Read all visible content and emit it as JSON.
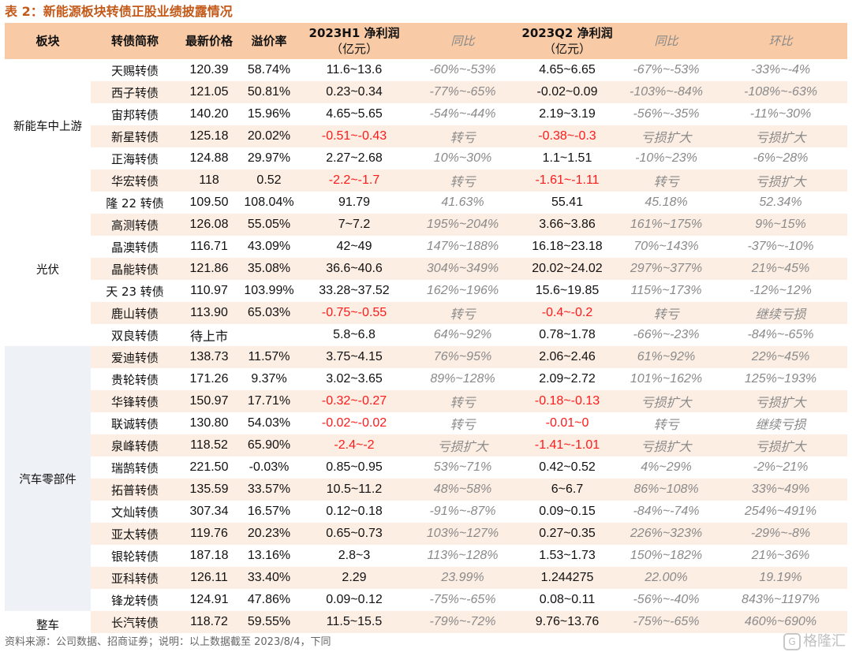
{
  "title": "表 2：新能源板块转债正股业绩披露情况",
  "headers": {
    "sector": "板块",
    "bond": "转债简称",
    "price": "最新价格",
    "premium": "溢价率",
    "h1": "2023H1 净利润",
    "h1_unit": "（亿元）",
    "h1_yoy": "同比",
    "q2": "2023Q2 净利润",
    "q2_unit": "（亿元）",
    "q2_yoy": "同比",
    "q2_qoq": "环比"
  },
  "sections": {
    "s1": "新能车中上游",
    "s2": "光伏",
    "s3": "汽车零部件",
    "s4": "整车"
  },
  "rows": [
    [
      "天赐转债",
      "120.39",
      "58.74%",
      "11.6~13.6",
      "-60%~-53%",
      "4.65~6.65",
      "-67%~-53%",
      "-33%~-4%"
    ],
    [
      "西子转债",
      "121.05",
      "50.81%",
      "0.23~0.34",
      "-77%~-65%",
      "-0.02~0.09",
      "-103%~-84%",
      "-108%~-63%"
    ],
    [
      "宙邦转债",
      "140.20",
      "15.96%",
      "4.65~5.65",
      "-54%~-44%",
      "2.19~3.19",
      "-56%~-35%",
      "-11%~30%"
    ],
    [
      "新星转债",
      "125.18",
      "20.02%",
      "-0.51~-0.43",
      "转亏",
      "-0.38~-0.3",
      "亏损扩大",
      "亏损扩大"
    ],
    [
      "正海转债",
      "124.88",
      "29.97%",
      "2.27~2.68",
      "10%~30%",
      "1.1~1.51",
      "-10%~23%",
      "-6%~28%"
    ],
    [
      "华宏转债",
      "118",
      "0.52",
      "-2.2~-1.7",
      "转亏",
      "-1.61~-1.11",
      "转亏",
      "亏损扩大"
    ],
    [
      "隆 22 转债",
      "109.50",
      "108.04%",
      "91.79",
      "41.63%",
      "55.41",
      "45.18%",
      "52.34%"
    ],
    [
      "高测转债",
      "126.08",
      "55.05%",
      "7~7.2",
      "195%~204%",
      "3.66~3.86",
      "161%~175%",
      "9%~15%"
    ],
    [
      "晶澳转债",
      "116.71",
      "43.09%",
      "42~49",
      "147%~188%",
      "16.18~23.18",
      "70%~143%",
      "-37%~-10%"
    ],
    [
      "晶能转债",
      "121.86",
      "35.08%",
      "36.6~40.6",
      "304%~349%",
      "20.02~24.02",
      "297%~377%",
      "21%~45%"
    ],
    [
      "天 23 转债",
      "110.97",
      "103.99%",
      "33.28~37.52",
      "162%~196%",
      "15.6~19.85",
      "115%~173%",
      "-12%~12%"
    ],
    [
      "鹿山转债",
      "113.90",
      "65.03%",
      "-0.75~-0.55",
      "转亏",
      "-0.4~-0.2",
      "转亏",
      "继续亏损"
    ],
    [
      "双良转债",
      "待上市",
      "",
      "5.8~6.8",
      "64%~92%",
      "0.78~1.78",
      "-66%~-23%",
      "-84%~-65%"
    ],
    [
      "爱迪转债",
      "138.73",
      "11.57%",
      "3.75~4.15",
      "76%~95%",
      "2.06~2.46",
      "61%~92%",
      "22%~45%"
    ],
    [
      "贵轮转债",
      "171.26",
      "9.37%",
      "3.02~3.65",
      "89%~128%",
      "2.09~2.72",
      "101%~162%",
      "125%~193%"
    ],
    [
      "华锋转债",
      "150.97",
      "17.71%",
      "-0.32~-0.27",
      "转亏",
      "-0.18~-0.13",
      "亏损扩大",
      "亏损扩大"
    ],
    [
      "联诚转债",
      "130.80",
      "54.03%",
      "-0.02~-0.02",
      "转亏",
      "-0.01~0",
      "转亏",
      "继续亏损"
    ],
    [
      "泉峰转债",
      "118.52",
      "65.90%",
      "-2.4~-2",
      "亏损扩大",
      "-1.41~-1.01",
      "亏损扩大",
      "亏损扩大"
    ],
    [
      "瑞鹄转债",
      "221.50",
      "-0.03%",
      "0.85~0.95",
      "53%~71%",
      "0.42~0.52",
      "4%~29%",
      "-2%~21%"
    ],
    [
      "拓普转债",
      "135.59",
      "33.57%",
      "10.5~11.2",
      "48%~58%",
      "6~6.7",
      "86%~108%",
      "33%~49%"
    ],
    [
      "文灿转债",
      "307.34",
      "16.57%",
      "0.12~0.18",
      "-91%~-87%",
      "0.09~0.15",
      "-84%~-74%",
      "254%~491%"
    ],
    [
      "亚太转债",
      "119.76",
      "20.23%",
      "0.65~0.73",
      "103%~127%",
      "0.27~0.35",
      "226%~323%",
      "-29%~-8%"
    ],
    [
      "银轮转债",
      "187.18",
      "13.16%",
      "2.8~3",
      "113%~128%",
      "1.53~1.73",
      "150%~182%",
      "21%~36%"
    ],
    [
      "亚科转债",
      "126.11",
      "33.40%",
      "2.29",
      "23.99%",
      "1.244275",
      "22.00%",
      "19.19%"
    ],
    [
      "锋龙转债",
      "124.91",
      "47.86%",
      "0.09~0.12",
      "-75%~-65%",
      "0.08~0.11",
      "-56%~-40%",
      "843%~1197%"
    ],
    [
      "长汽转债",
      "118.72",
      "59.55%",
      "11.5~15.5",
      "-79%~-72%",
      "9.76~13.76",
      "-75%~-65%",
      "460%~690%"
    ]
  ],
  "footer": "资料来源：公司数据、招商证券；说明：以上数据截至 2023/8/4，下同",
  "watermark": "格隆汇",
  "colors": {
    "header_bg": "#f8cba6",
    "stripe": "#fdeee4",
    "negative": "#ff1a1a",
    "title": "#c45a1a"
  }
}
